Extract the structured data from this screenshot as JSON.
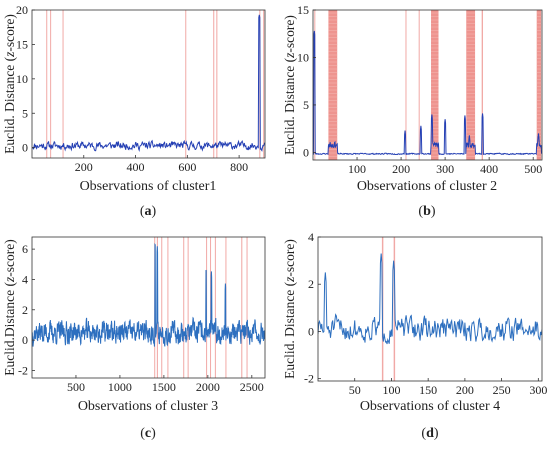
{
  "chart_data": [
    {
      "type": "line",
      "panel": "a",
      "caption_letter": "a",
      "xlabel": "Observations of cluster1",
      "ylabel_prefix": "Euclid. Distance (",
      "ylabel_italic": "z",
      "ylabel_suffix": "-score)",
      "xlim": [
        0,
        900
      ],
      "ylim": [
        -1.5,
        20
      ],
      "xticks": [
        200,
        400,
        600,
        800
      ],
      "yticks": [
        0,
        5,
        10,
        15,
        20
      ],
      "color": "#2540b4",
      "highlight_color": "#e8706a",
      "grid": false,
      "highlights": [
        [
          55,
          57
        ],
        [
          70,
          73
        ],
        [
          118,
          121
        ],
        [
          592,
          595
        ],
        [
          700,
          704
        ],
        [
          712,
          716
        ],
        [
          878,
          882
        ],
        [
          893,
          896
        ]
      ],
      "spikes": [
        [
          878,
          19.3
        ]
      ],
      "baseline": 0.3,
      "noise": 0.9,
      "seed": 11,
      "points": 450
    },
    {
      "type": "line",
      "panel": "b",
      "caption_letter": "b",
      "xlabel": "Observations of cluster 2",
      "ylabel_prefix": "Euclid. Distance (",
      "ylabel_italic": "z",
      "ylabel_suffix": "-score)",
      "xlim": [
        0,
        520
      ],
      "ylim": [
        -0.8,
        15
      ],
      "xticks": [
        100,
        200,
        300,
        400,
        500
      ],
      "yticks": [
        0,
        5,
        10,
        15
      ],
      "color": "#2540b4",
      "highlight_color": "#e8706a",
      "grid": false,
      "highlights": [
        [
          3,
          5
        ],
        [
          35,
          55
        ],
        [
          210,
          212
        ],
        [
          240,
          242
        ],
        [
          268,
          285
        ],
        [
          348,
          368
        ],
        [
          383,
          386
        ],
        [
          508,
          518
        ]
      ],
      "spikes": [
        [
          3,
          12.8
        ],
        [
          209,
          2.3
        ],
        [
          245,
          2.8
        ],
        [
          270,
          4.0
        ],
        [
          300,
          3.5
        ],
        [
          345,
          3.9
        ],
        [
          355,
          1.8
        ],
        [
          385,
          4.1
        ],
        [
          512,
          2.0
        ]
      ],
      "baseline": -0.15,
      "noise": 0.1,
      "seed": 23,
      "points": 520
    },
    {
      "type": "line",
      "panel": "c",
      "caption_letter": "c",
      "xlabel": "Observations of cluster 3",
      "ylabel_prefix": "Euclid.Distance (",
      "ylabel_italic": "z",
      "ylabel_suffix": "-score)",
      "xlim": [
        0,
        2650
      ],
      "ylim": [
        -2.5,
        6.8
      ],
      "xticks": [
        500,
        1000,
        1500,
        2000,
        2500
      ],
      "yticks": [
        -2,
        0,
        2,
        4,
        6
      ],
      "color": "#2d6fbf",
      "highlight_color": "#e8706a",
      "grid": false,
      "highlights": [
        [
          1390,
          1398
        ],
        [
          1420,
          1432
        ],
        [
          1470,
          1476
        ],
        [
          1540,
          1546
        ],
        [
          1720,
          1726
        ],
        [
          1770,
          1776
        ],
        [
          1980,
          1988
        ],
        [
          2025,
          2035
        ],
        [
          2080,
          2088
        ],
        [
          2200,
          2208
        ],
        [
          2380,
          2392
        ],
        [
          2440,
          2446
        ]
      ],
      "spikes": [
        [
          1400,
          6.5
        ],
        [
          1425,
          6.2
        ],
        [
          1980,
          4.8
        ],
        [
          2040,
          4.6
        ],
        [
          2200,
          3.8
        ]
      ],
      "baseline": 0.5,
      "noise": 1.2,
      "seed": 37,
      "points": 900
    },
    {
      "type": "line",
      "panel": "d",
      "caption_letter": "d",
      "xlabel": "Observations of cluster 4",
      "ylabel_prefix": "Euclid. Distance (",
      "ylabel_italic": "z",
      "ylabel_suffix": "-score)",
      "xlim": [
        0,
        305
      ],
      "ylim": [
        -2.1,
        4
      ],
      "xticks": [
        50,
        100,
        150,
        200,
        250,
        300
      ],
      "yticks": [
        -2,
        0,
        2,
        4
      ],
      "color": "#2d6fbf",
      "highlight_color": "#e8706a",
      "grid": false,
      "highlights": [
        [
          87,
          89
        ],
        [
          103,
          105
        ]
      ],
      "spikes": [
        [
          86,
          3.3
        ],
        [
          103,
          3.0
        ],
        [
          10,
          2.5
        ]
      ],
      "baseline": 0.1,
      "noise": 0.85,
      "seed": 51,
      "points": 305
    }
  ]
}
